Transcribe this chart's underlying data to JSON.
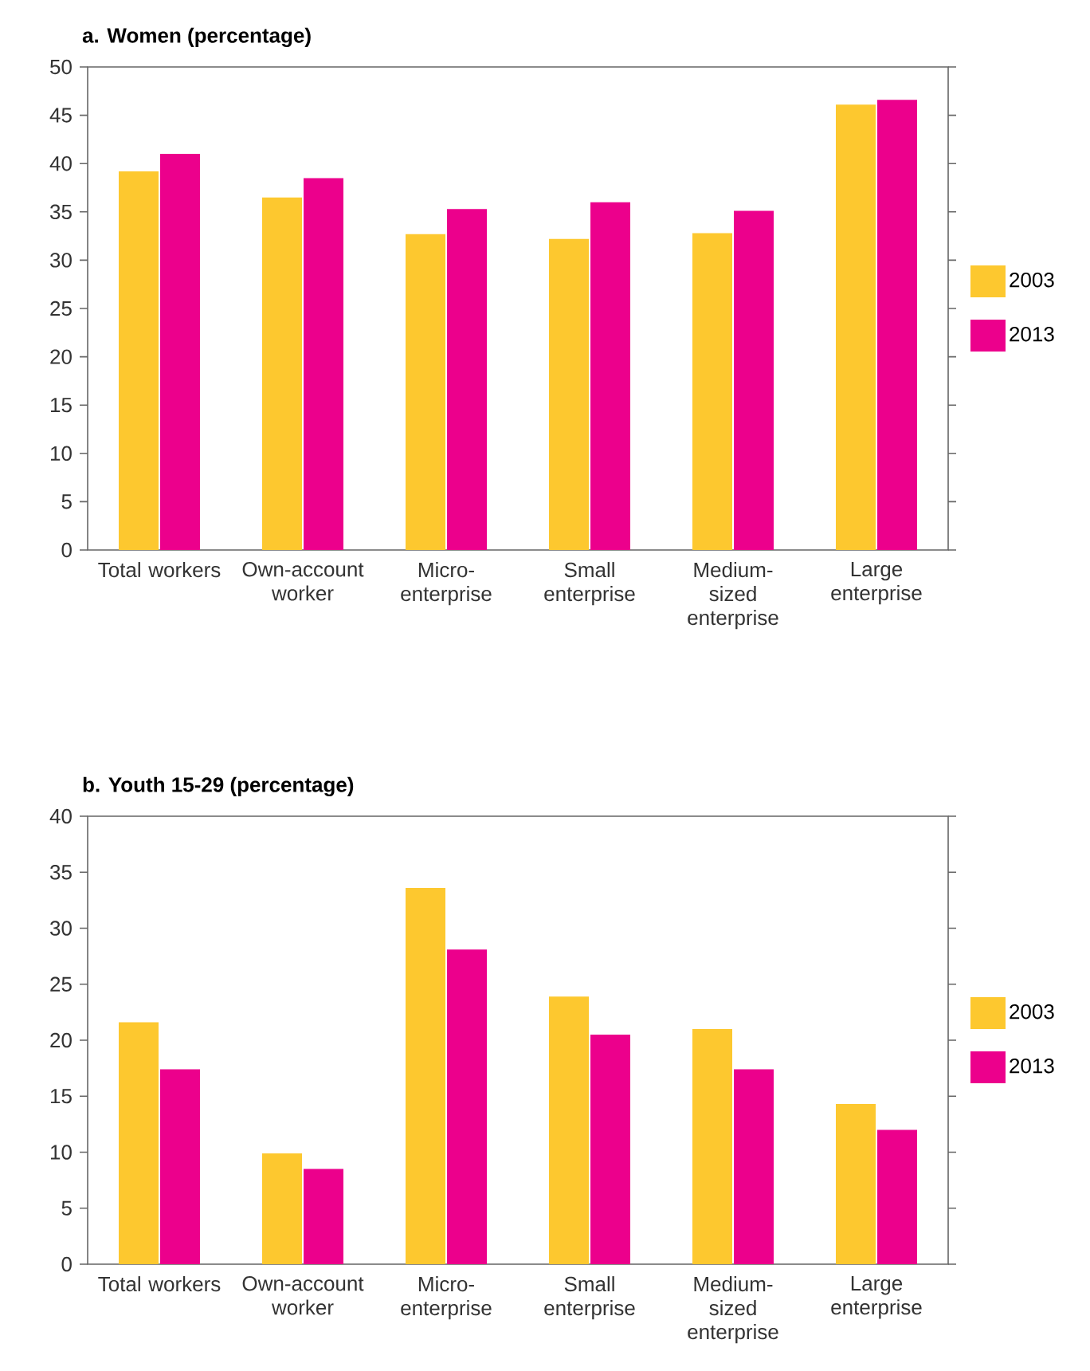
{
  "chart_data": [
    {
      "type": "bar",
      "title": "a. Women (percentage)",
      "categories": [
        "Total workers",
        "Own-account worker",
        "Micro-enterprise",
        "Small enterprise",
        "Medium-sized enterprise",
        "Large enterprise"
      ],
      "series": [
        {
          "name": "2003",
          "color": "#fdc82f",
          "values": [
            39.2,
            36.5,
            32.7,
            32.2,
            32.8,
            46.1
          ]
        },
        {
          "name": "2013",
          "color": "#ec008c",
          "values": [
            41.0,
            38.5,
            35.3,
            36.0,
            35.1,
            46.6
          ]
        }
      ],
      "ylim": [
        0,
        50
      ],
      "yticks": [
        0,
        5,
        10,
        15,
        20,
        25,
        30,
        35,
        40,
        45,
        50
      ],
      "legend": "right",
      "grid": false
    },
    {
      "type": "bar",
      "title": "b. Youth 15-29 (percentage)",
      "categories": [
        "Total workers",
        "Own-account worker",
        "Micro-enterprise",
        "Small enterprise",
        "Medium-sized enterprise",
        "Large enterprise"
      ],
      "series": [
        {
          "name": "2003",
          "color": "#fdc82f",
          "values": [
            21.6,
            9.9,
            33.6,
            23.9,
            21.0,
            14.3
          ]
        },
        {
          "name": "2013",
          "color": "#ec008c",
          "values": [
            17.4,
            8.5,
            28.1,
            20.5,
            17.4,
            12.0
          ]
        }
      ],
      "ylim": [
        0,
        40
      ],
      "yticks": [
        0,
        5,
        10,
        15,
        20,
        25,
        30,
        35,
        40
      ],
      "legend": "right",
      "grid": false
    }
  ]
}
